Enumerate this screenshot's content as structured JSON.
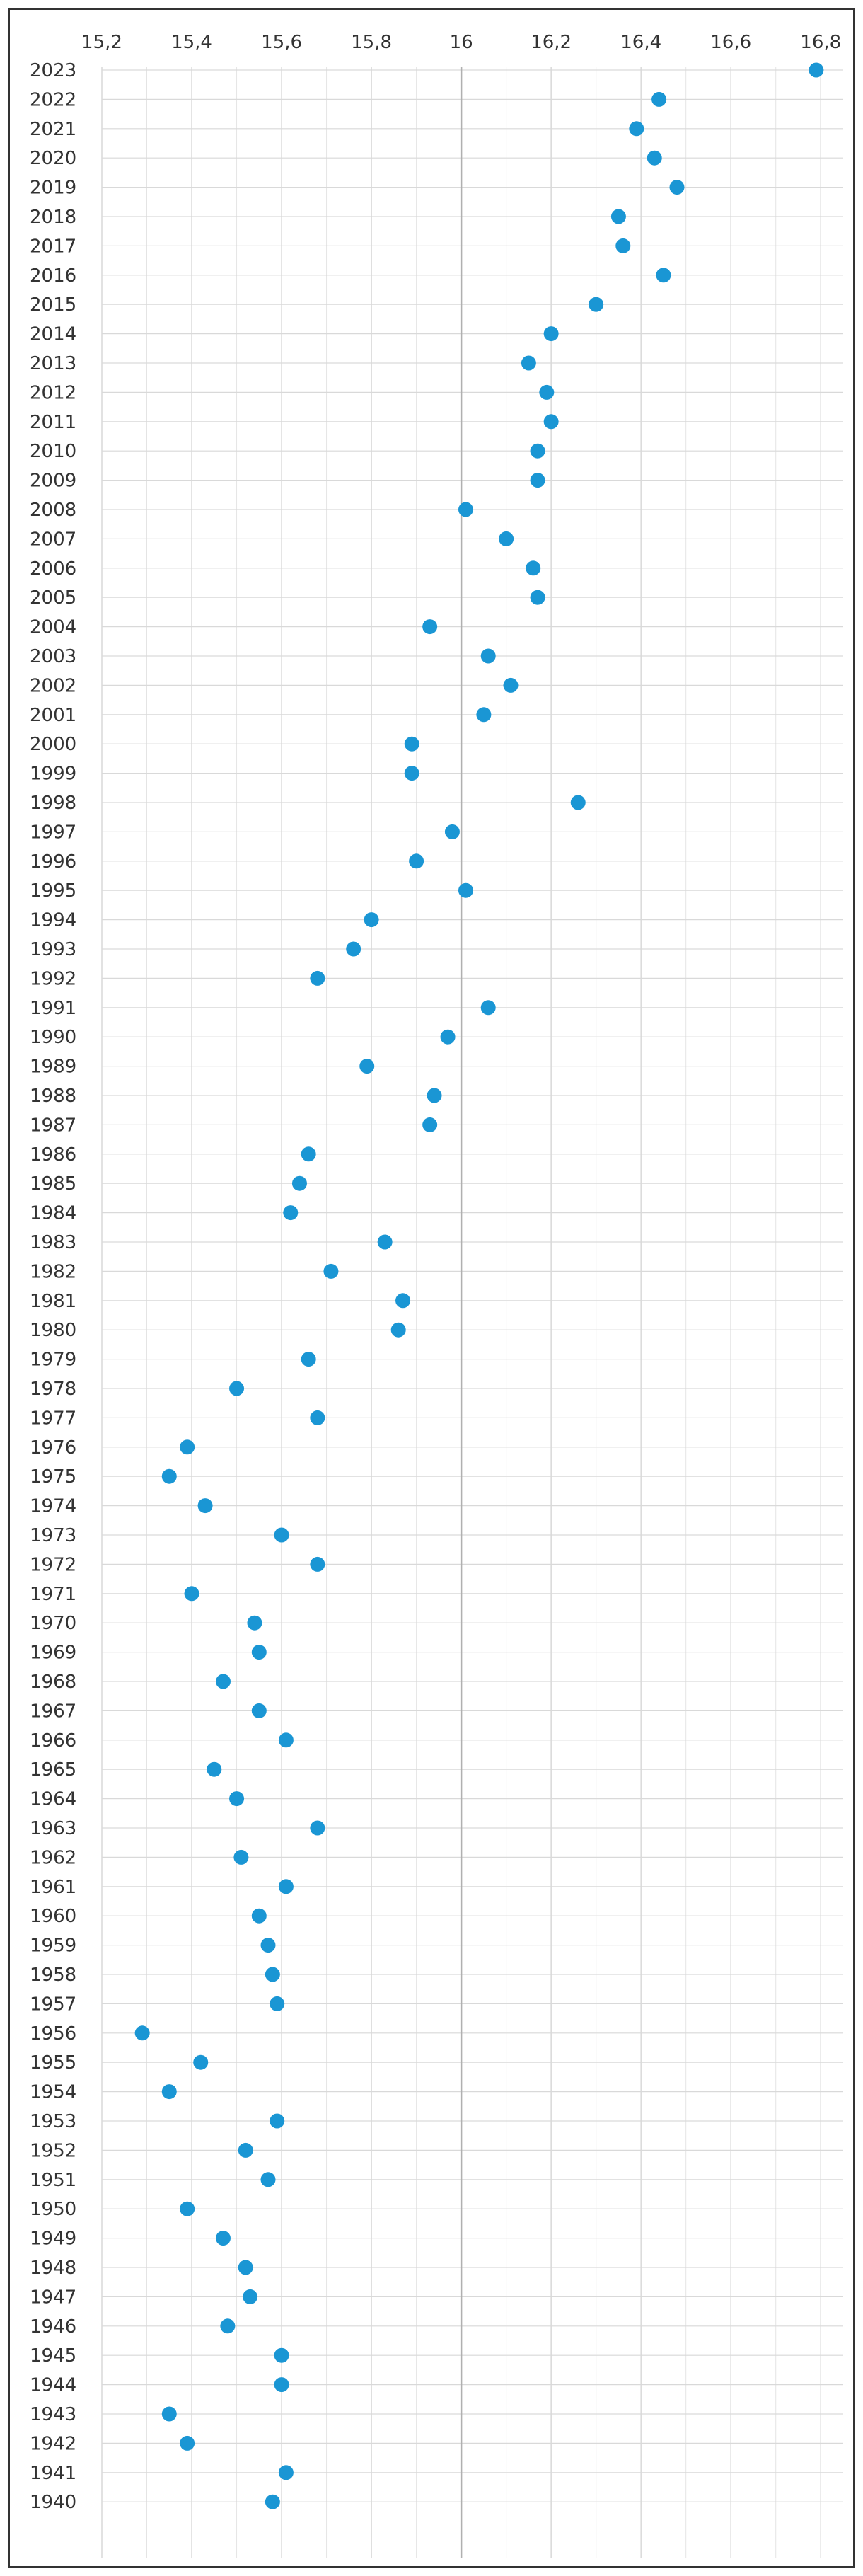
{
  "chart_data": {
    "type": "scatter",
    "title": "",
    "xlabel": "",
    "ylabel": "",
    "xlim": [
      15.2,
      16.85
    ],
    "x_ticks": [
      15.2,
      15.4,
      15.6,
      15.8,
      16,
      16.2,
      16.4,
      16.6,
      16.8
    ],
    "x_tick_labels": [
      "15,2",
      "15,4",
      "15,6",
      "15,8",
      "16",
      "16,2",
      "16,4",
      "16,6",
      "16,8"
    ],
    "x_axis_position": "top",
    "reference_line": 16,
    "grid": true,
    "legend": "none",
    "marker_color": "#1a96d4",
    "grid_color": "#d9d9d9",
    "reference_line_color": "#b0b0b0",
    "points": [
      {
        "year": "2023",
        "value": 16.79
      },
      {
        "year": "2022",
        "value": 16.44
      },
      {
        "year": "2021",
        "value": 16.39
      },
      {
        "year": "2020",
        "value": 16.43
      },
      {
        "year": "2019",
        "value": 16.48
      },
      {
        "year": "2018",
        "value": 16.35
      },
      {
        "year": "2017",
        "value": 16.36
      },
      {
        "year": "2016",
        "value": 16.45
      },
      {
        "year": "2015",
        "value": 16.3
      },
      {
        "year": "2014",
        "value": 16.2
      },
      {
        "year": "2013",
        "value": 16.15
      },
      {
        "year": "2012",
        "value": 16.19
      },
      {
        "year": "2011",
        "value": 16.2
      },
      {
        "year": "2010",
        "value": 16.17
      },
      {
        "year": "2009",
        "value": 16.17
      },
      {
        "year": "2008",
        "value": 16.01
      },
      {
        "year": "2007",
        "value": 16.1
      },
      {
        "year": "2006",
        "value": 16.16
      },
      {
        "year": "2005",
        "value": 16.17
      },
      {
        "year": "2004",
        "value": 15.93
      },
      {
        "year": "2003",
        "value": 16.06
      },
      {
        "year": "2002",
        "value": 16.11
      },
      {
        "year": "2001",
        "value": 16.05
      },
      {
        "year": "2000",
        "value": 15.89
      },
      {
        "year": "1999",
        "value": 15.89
      },
      {
        "year": "1998",
        "value": 16.26
      },
      {
        "year": "1997",
        "value": 15.98
      },
      {
        "year": "1996",
        "value": 15.9
      },
      {
        "year": "1995",
        "value": 16.01
      },
      {
        "year": "1994",
        "value": 15.8
      },
      {
        "year": "1993",
        "value": 15.76
      },
      {
        "year": "1992",
        "value": 15.68
      },
      {
        "year": "1991",
        "value": 16.06
      },
      {
        "year": "1990",
        "value": 15.97
      },
      {
        "year": "1989",
        "value": 15.79
      },
      {
        "year": "1988",
        "value": 15.94
      },
      {
        "year": "1987",
        "value": 15.93
      },
      {
        "year": "1986",
        "value": 15.66
      },
      {
        "year": "1985",
        "value": 15.64
      },
      {
        "year": "1984",
        "value": 15.62
      },
      {
        "year": "1983",
        "value": 15.83
      },
      {
        "year": "1982",
        "value": 15.71
      },
      {
        "year": "1981",
        "value": 15.87
      },
      {
        "year": "1980",
        "value": 15.86
      },
      {
        "year": "1979",
        "value": 15.66
      },
      {
        "year": "1978",
        "value": 15.5
      },
      {
        "year": "1977",
        "value": 15.68
      },
      {
        "year": "1976",
        "value": 15.39
      },
      {
        "year": "1975",
        "value": 15.35
      },
      {
        "year": "1974",
        "value": 15.43
      },
      {
        "year": "1973",
        "value": 15.6
      },
      {
        "year": "1972",
        "value": 15.68
      },
      {
        "year": "1971",
        "value": 15.4
      },
      {
        "year": "1970",
        "value": 15.54
      },
      {
        "year": "1969",
        "value": 15.55
      },
      {
        "year": "1968",
        "value": 15.47
      },
      {
        "year": "1967",
        "value": 15.55
      },
      {
        "year": "1966",
        "value": 15.61
      },
      {
        "year": "1965",
        "value": 15.45
      },
      {
        "year": "1964",
        "value": 15.5
      },
      {
        "year": "1963",
        "value": 15.68
      },
      {
        "year": "1962",
        "value": 15.51
      },
      {
        "year": "1961",
        "value": 15.61
      },
      {
        "year": "1960",
        "value": 15.55
      },
      {
        "year": "1959",
        "value": 15.57
      },
      {
        "year": "1958",
        "value": 15.58
      },
      {
        "year": "1957",
        "value": 15.59
      },
      {
        "year": "1956",
        "value": 15.29
      },
      {
        "year": "1955",
        "value": 15.42
      },
      {
        "year": "1954",
        "value": 15.35
      },
      {
        "year": "1953",
        "value": 15.59
      },
      {
        "year": "1952",
        "value": 15.52
      },
      {
        "year": "1951",
        "value": 15.57
      },
      {
        "year": "1950",
        "value": 15.39
      },
      {
        "year": "1949",
        "value": 15.47
      },
      {
        "year": "1948",
        "value": 15.52
      },
      {
        "year": "1947",
        "value": 15.53
      },
      {
        "year": "1946",
        "value": 15.48
      },
      {
        "year": "1945",
        "value": 15.6
      },
      {
        "year": "1944",
        "value": 15.6
      },
      {
        "year": "1943",
        "value": 15.35
      },
      {
        "year": "1942",
        "value": 15.39
      },
      {
        "year": "1941",
        "value": 15.61
      },
      {
        "year": "1940",
        "value": 15.58
      }
    ]
  }
}
